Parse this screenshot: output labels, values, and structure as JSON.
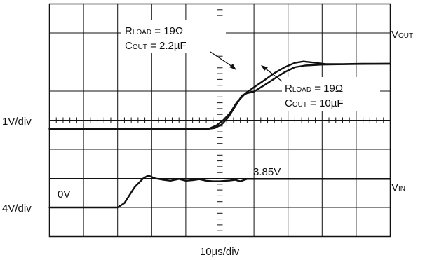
{
  "chart_data": {
    "type": "line",
    "x_unit_label": "10µs/div",
    "divisions": {
      "x": 10,
      "y": 8
    },
    "grid": true,
    "channels": [
      {
        "scale_label": "1V/div",
        "series": [
          {
            "note_line1_sym": "R",
            "note_line1_sub": "LOAD",
            "note_line1_rest": " = 19Ω",
            "note_line2_sym": "C",
            "note_line2_sub": "OUT",
            "note_line2_rest": " = 2.2µF",
            "points": [
              [
                0,
                -0.3
              ],
              [
                4.5,
                -0.3
              ],
              [
                4.7,
                -0.28
              ],
              [
                4.9,
                -0.18
              ],
              [
                5.1,
                0.0
              ],
              [
                5.3,
                0.25
              ],
              [
                5.5,
                0.62
              ],
              [
                5.75,
                0.92
              ],
              [
                6.0,
                1.13
              ],
              [
                6.3,
                1.37
              ],
              [
                6.6,
                1.62
              ],
              [
                6.9,
                1.82
              ],
              [
                7.2,
                1.97
              ],
              [
                7.45,
                2.02
              ],
              [
                7.75,
                1.98
              ],
              [
                8.1,
                1.93
              ],
              [
                8.6,
                1.93
              ],
              [
                9.2,
                1.94
              ],
              [
                10,
                1.94
              ]
            ]
          },
          {
            "note_line1_sym": "R",
            "note_line1_sub": "LOAD",
            "note_line1_rest": " = 19Ω",
            "note_line2_sym": "C",
            "note_line2_sub": "OUT",
            "note_line2_rest": " = 10µF",
            "points": [
              [
                0,
                -0.3
              ],
              [
                4.65,
                -0.3
              ],
              [
                4.85,
                -0.27
              ],
              [
                5.05,
                -0.15
              ],
              [
                5.25,
                0.1
              ],
              [
                5.45,
                0.48
              ],
              [
                5.65,
                0.85
              ],
              [
                5.8,
                0.93
              ],
              [
                6.0,
                0.98
              ],
              [
                6.3,
                1.2
              ],
              [
                6.6,
                1.43
              ],
              [
                6.9,
                1.65
              ],
              [
                7.2,
                1.82
              ],
              [
                7.5,
                1.88
              ],
              [
                8.0,
                1.91
              ],
              [
                9.0,
                1.93
              ],
              [
                10,
                1.94
              ]
            ]
          }
        ],
        "trace_label_main": "V",
        "trace_label_sub": "OUT"
      },
      {
        "scale_label": "4V/div",
        "zero_label": "0V",
        "annotation": "3.85V",
        "trace_label_main": "V",
        "trace_label_sub": "IN",
        "series": [
          {
            "points": [
              [
                0,
                -3.0
              ],
              [
                2.0,
                -3.0
              ],
              [
                2.2,
                -2.85
              ],
              [
                2.5,
                -2.3
              ],
              [
                2.75,
                -2.0
              ],
              [
                2.9,
                -1.9
              ],
              [
                3.1,
                -2.0
              ],
              [
                3.35,
                -2.05
              ],
              [
                3.55,
                -2.08
              ],
              [
                3.8,
                -2.02
              ],
              [
                4.0,
                -2.08
              ],
              [
                4.2,
                -2.06
              ],
              [
                4.4,
                -2.03
              ],
              [
                4.6,
                -2.08
              ],
              [
                4.8,
                -2.1
              ],
              [
                5.0,
                -2.1
              ],
              [
                5.3,
                -2.07
              ],
              [
                5.45,
                -2.05
              ],
              [
                5.6,
                -2.1
              ],
              [
                5.8,
                -2.02
              ],
              [
                6.5,
                -2.02
              ],
              [
                10,
                -2.02
              ]
            ]
          }
        ]
      }
    ]
  }
}
